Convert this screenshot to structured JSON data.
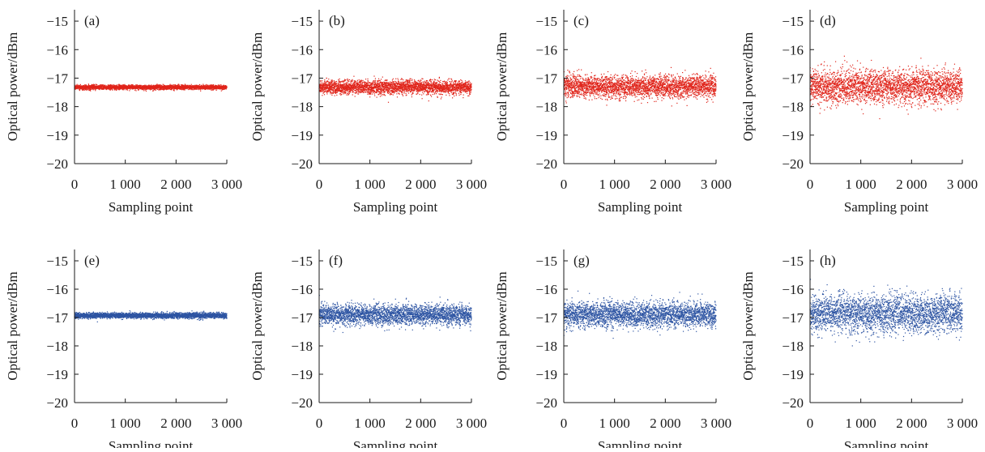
{
  "chart_data": [
    {
      "type": "scatter",
      "panel_label": "(a)",
      "color": "#e0251b",
      "xlabel": "Sampling point",
      "ylabel": "Optical power/dBm",
      "xlim": [
        0,
        3000
      ],
      "ylim": [
        -20,
        -14.6
      ],
      "xticks": [
        0,
        1000,
        2000,
        3000
      ],
      "xtick_labels": [
        "0",
        "1 000",
        "2 000",
        "3 000"
      ],
      "yticks": [
        -15,
        -16,
        -17,
        -18,
        -19,
        -20
      ],
      "ytick_labels": [
        "−15",
        "−16",
        "−17",
        "−18",
        "−19",
        "−20"
      ],
      "series": [
        {
          "n_points": 3000,
          "mean": -17.32,
          "spread": 0.04
        }
      ]
    },
    {
      "type": "scatter",
      "panel_label": "(b)",
      "color": "#e0251b",
      "xlabel": "Sampling point",
      "ylabel": "Optical power/dBm",
      "xlim": [
        0,
        3000
      ],
      "ylim": [
        -20,
        -14.6
      ],
      "xticks": [
        0,
        1000,
        2000,
        3000
      ],
      "xtick_labels": [
        "0",
        "1 000",
        "2 000",
        "3 000"
      ],
      "yticks": [
        -15,
        -16,
        -17,
        -18,
        -19,
        -20
      ],
      "ytick_labels": [
        "−15",
        "−16",
        "−17",
        "−18",
        "−19",
        "−20"
      ],
      "series": [
        {
          "n_points": 3000,
          "mean": -17.32,
          "spread": 0.12
        }
      ]
    },
    {
      "type": "scatter",
      "panel_label": "(c)",
      "color": "#e0251b",
      "xlabel": "Sampling point",
      "ylabel": "Optical power/dBm",
      "xlim": [
        0,
        3000
      ],
      "ylim": [
        -20,
        -14.6
      ],
      "xticks": [
        0,
        1000,
        2000,
        3000
      ],
      "xtick_labels": [
        "0",
        "1 000",
        "2 000",
        "3 000"
      ],
      "yticks": [
        -15,
        -16,
        -17,
        -18,
        -19,
        -20
      ],
      "ytick_labels": [
        "−15",
        "−16",
        "−17",
        "−18",
        "−19",
        "−20"
      ],
      "series": [
        {
          "n_points": 3000,
          "mean": -17.3,
          "spread": 0.2
        }
      ]
    },
    {
      "type": "scatter",
      "panel_label": "(d)",
      "color": "#e0251b",
      "xlabel": "Sampling point",
      "ylabel": "Optical power/dBm",
      "xlim": [
        0,
        3000
      ],
      "ylim": [
        -20,
        -14.6
      ],
      "xticks": [
        0,
        1000,
        2000,
        3000
      ],
      "xtick_labels": [
        "0",
        "1 000",
        "2 000",
        "3 000"
      ],
      "yticks": [
        -15,
        -16,
        -17,
        -18,
        -19,
        -20
      ],
      "ytick_labels": [
        "−15",
        "−16",
        "−17",
        "−18",
        "−19",
        "−20"
      ],
      "series": [
        {
          "n_points": 3000,
          "mean": -17.3,
          "spread": 0.3
        }
      ]
    },
    {
      "type": "scatter",
      "panel_label": "(e)",
      "color": "#2e55a3",
      "xlabel": "Sampling point",
      "ylabel": "Optical power/dBm",
      "xlim": [
        0,
        3000
      ],
      "ylim": [
        -20,
        -14.6
      ],
      "xticks": [
        0,
        1000,
        2000,
        3000
      ],
      "xtick_labels": [
        "0",
        "1 000",
        "2 000",
        "3 000"
      ],
      "yticks": [
        -15,
        -16,
        -17,
        -18,
        -19,
        -20
      ],
      "ytick_labels": [
        "−15",
        "−16",
        "−17",
        "−18",
        "−19",
        "−20"
      ],
      "series": [
        {
          "n_points": 3000,
          "mean": -16.93,
          "spread": 0.05
        }
      ]
    },
    {
      "type": "scatter",
      "panel_label": "(f)",
      "color": "#2e55a3",
      "xlabel": "Sampling point",
      "ylabel": "Optical power/dBm",
      "xlim": [
        0,
        3000
      ],
      "ylim": [
        -20,
        -14.6
      ],
      "xticks": [
        0,
        1000,
        2000,
        3000
      ],
      "xtick_labels": [
        "0",
        "1 000",
        "2 000",
        "3 000"
      ],
      "yticks": [
        -15,
        -16,
        -17,
        -18,
        -19,
        -20
      ],
      "ytick_labels": [
        "−15",
        "−16",
        "−17",
        "−18",
        "−19",
        "−20"
      ],
      "series": [
        {
          "n_points": 3000,
          "mean": -16.9,
          "spread": 0.18
        }
      ]
    },
    {
      "type": "scatter",
      "panel_label": "(g)",
      "color": "#2e55a3",
      "xlabel": "Sampling point",
      "ylabel": "Optical power/dBm",
      "xlim": [
        0,
        3000
      ],
      "ylim": [
        -20,
        -14.6
      ],
      "xticks": [
        0,
        1000,
        2000,
        3000
      ],
      "xtick_labels": [
        "0",
        "1 000",
        "2 000",
        "3 000"
      ],
      "yticks": [
        -15,
        -16,
        -17,
        -18,
        -19,
        -20
      ],
      "ytick_labels": [
        "−15",
        "−16",
        "−17",
        "−18",
        "−19",
        "−20"
      ],
      "series": [
        {
          "n_points": 3000,
          "mean": -16.9,
          "spread": 0.22
        }
      ]
    },
    {
      "type": "scatter",
      "panel_label": "(h)",
      "color": "#2e55a3",
      "xlabel": "Sampling point",
      "ylabel": "Optical power/dBm",
      "xlim": [
        0,
        3000
      ],
      "ylim": [
        -20,
        -14.6
      ],
      "xticks": [
        0,
        1000,
        2000,
        3000
      ],
      "xtick_labels": [
        "0",
        "1 000",
        "2 000",
        "3 000"
      ],
      "yticks": [
        -15,
        -16,
        -17,
        -18,
        -19,
        -20
      ],
      "ytick_labels": [
        "−15",
        "−16",
        "−17",
        "−18",
        "−19",
        "−20"
      ],
      "series": [
        {
          "n_points": 3000,
          "mean": -16.88,
          "spread": 0.33
        }
      ]
    }
  ]
}
